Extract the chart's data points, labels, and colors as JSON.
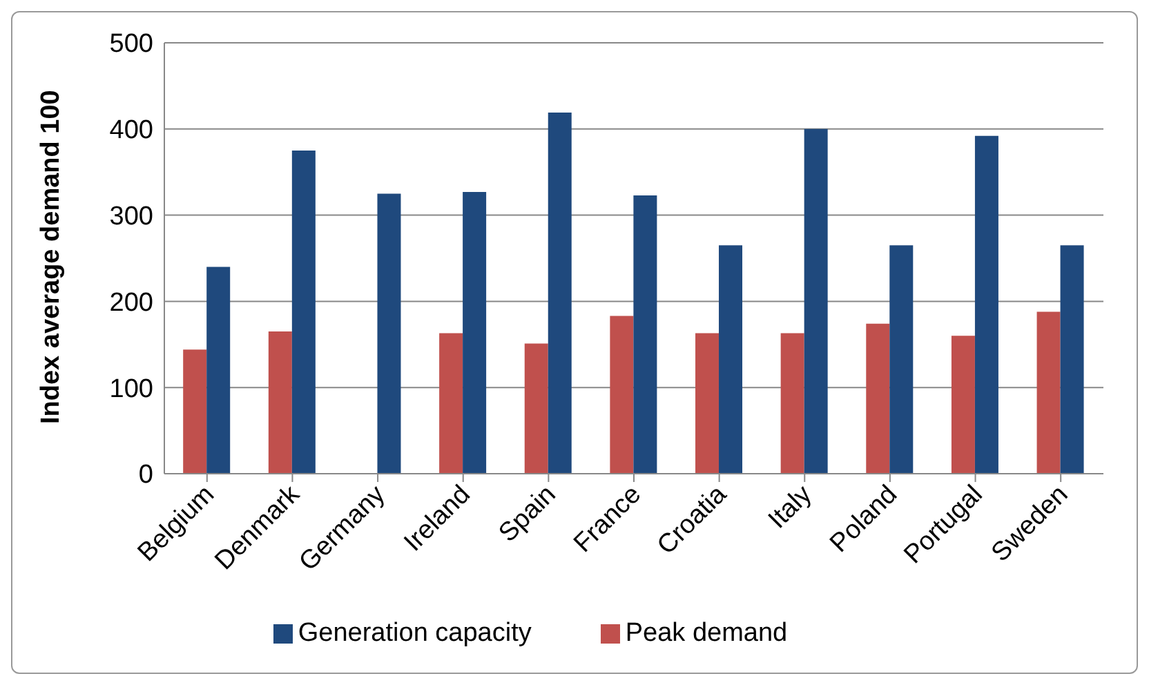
{
  "chart_data": {
    "type": "bar",
    "ylabel": "Index average demand 100",
    "categories": [
      "Belgium",
      "Denmark",
      "Germany",
      "Ireland",
      "Spain",
      "France",
      "Croatia",
      "Italy",
      "Poland",
      "Portugal",
      "Sweden"
    ],
    "series": [
      {
        "name": "Peak demand",
        "color": "#c0504d",
        "values": [
          144,
          165,
          null,
          163,
          151,
          183,
          163,
          163,
          174,
          160,
          188
        ]
      },
      {
        "name": "Generation capacity",
        "color": "#1f497d",
        "values": [
          240,
          375,
          325,
          327,
          419,
          323,
          265,
          400,
          265,
          392,
          265
        ]
      }
    ],
    "ylim": [
      0,
      500
    ],
    "yticks": [
      0,
      100,
      200,
      300,
      400,
      500
    ],
    "grid": "y",
    "legend": "bottom"
  }
}
